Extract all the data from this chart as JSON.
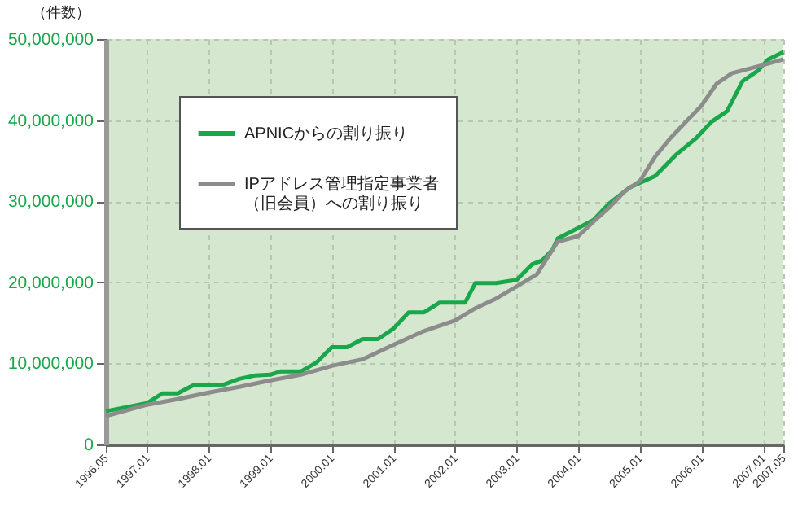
{
  "chart_data": {
    "type": "line",
    "ylabel": "（件数）",
    "ylim": [
      0,
      50000000
    ],
    "yticks": [
      {
        "value": 0,
        "label": "0"
      },
      {
        "value": 10000000,
        "label": "10,000,000"
      },
      {
        "value": 20000000,
        "label": "20,000,000"
      },
      {
        "value": 30000000,
        "label": "30,000,000"
      },
      {
        "value": 40000000,
        "label": "40,000,000"
      },
      {
        "value": 50000000,
        "label": "50,000,000"
      }
    ],
    "xlim": [
      "1996-05",
      "2007-05"
    ],
    "xticks": [
      {
        "value": "1996-05",
        "label": "1996.05"
      },
      {
        "value": "1997-01",
        "label": "1997.01"
      },
      {
        "value": "1998-01",
        "label": "1998.01"
      },
      {
        "value": "1999-01",
        "label": "1999.01"
      },
      {
        "value": "2000-01",
        "label": "2000.01"
      },
      {
        "value": "2001-01",
        "label": "2001.01"
      },
      {
        "value": "2002-01",
        "label": "2002.01"
      },
      {
        "value": "2003-01",
        "label": "2003.01"
      },
      {
        "value": "2004-01",
        "label": "2004.01"
      },
      {
        "value": "2005-01",
        "label": "2005.01"
      },
      {
        "value": "2006-01",
        "label": "2006.01"
      },
      {
        "value": "2007-01",
        "label": "2007.01"
      },
      {
        "value": "2007-05",
        "label": "2007.05"
      }
    ],
    "grid": true,
    "legend": "top left",
    "series": [
      {
        "name": "APNICからの割り振り",
        "color": "#1aa64a",
        "x": [
          "1996-05",
          "1997-01",
          "1997-04",
          "1997-07",
          "1997-10",
          "1998-01",
          "1998-04",
          "1998-07",
          "1998-10",
          "1999-01",
          "1999-03",
          "1999-07",
          "1999-10",
          "2000-01",
          "2000-04",
          "2000-07",
          "2000-10",
          "2001-01",
          "2001-04",
          "2001-07",
          "2001-10",
          "2002-01",
          "2002-03",
          "2002-05",
          "2002-09",
          "2003-01",
          "2003-04",
          "2003-06",
          "2003-08",
          "2003-09",
          "2004-01",
          "2004-04",
          "2004-07",
          "2004-11",
          "2005-04",
          "2005-08",
          "2005-12",
          "2006-03",
          "2006-06",
          "2006-09",
          "2006-12",
          "2007-02",
          "2007-05"
        ],
        "values": [
          4100000,
          5100000,
          6300000,
          6300000,
          7300000,
          7300000,
          7400000,
          8100000,
          8500000,
          8600000,
          9000000,
          9000000,
          10100000,
          12000000,
          12000000,
          13000000,
          13000000,
          14300000,
          16300000,
          16300000,
          17500000,
          17500000,
          17500000,
          19900000,
          19900000,
          20300000,
          22200000,
          22700000,
          24000000,
          25400000,
          26700000,
          27700000,
          29700000,
          31700000,
          33100000,
          35700000,
          37800000,
          39800000,
          41100000,
          44800000,
          46100000,
          47500000,
          48400000
        ]
      },
      {
        "name": "IPアドレス管理指定事業者（旧会員）への割り振り",
        "color": "#8c8c8c",
        "x": [
          "1996-05",
          "1997-01",
          "1997-07",
          "1998-01",
          "1998-07",
          "1999-01",
          "1999-07",
          "2000-01",
          "2000-07",
          "2001-01",
          "2001-07",
          "2002-01",
          "2002-05",
          "2002-09",
          "2003-01",
          "2003-05",
          "2003-07",
          "2003-09",
          "2004-01",
          "2004-04",
          "2004-07",
          "2004-10",
          "2005-01",
          "2005-04",
          "2005-07",
          "2005-10",
          "2006-01",
          "2006-04",
          "2006-07",
          "2007-01",
          "2007-05"
        ],
        "values": [
          3500000,
          4900000,
          5600000,
          6400000,
          7100000,
          7900000,
          8600000,
          9700000,
          10500000,
          12300000,
          14000000,
          15300000,
          16800000,
          18000000,
          19500000,
          21000000,
          23000000,
          25000000,
          25700000,
          27500000,
          29200000,
          31200000,
          32500000,
          35500000,
          37800000,
          39800000,
          41800000,
          44500000,
          45800000,
          46800000,
          47500000
        ]
      }
    ]
  }
}
